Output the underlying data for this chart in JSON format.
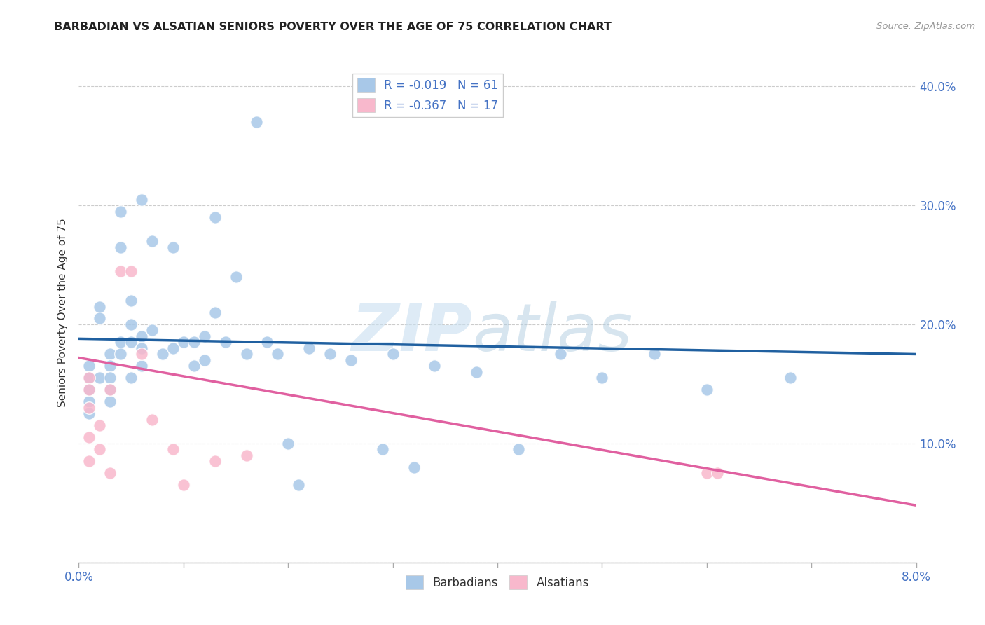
{
  "title": "BARBADIAN VS ALSATIAN SENIORS POVERTY OVER THE AGE OF 75 CORRELATION CHART",
  "source": "Source: ZipAtlas.com",
  "ylabel": "Seniors Poverty Over the Age of 75",
  "xlim": [
    0.0,
    0.08
  ],
  "ylim": [
    0.0,
    0.42
  ],
  "xticks": [
    0.0,
    0.01,
    0.02,
    0.03,
    0.04,
    0.05,
    0.06,
    0.07,
    0.08
  ],
  "xtick_labels": [
    "0.0%",
    "",
    "",
    "",
    "",
    "",
    "",
    "",
    "8.0%"
  ],
  "ytick_labels_right": [
    "",
    "10.0%",
    "20.0%",
    "30.0%",
    "40.0%"
  ],
  "yticks_right": [
    0.0,
    0.1,
    0.2,
    0.3,
    0.4
  ],
  "watermark_zip": "ZIP",
  "watermark_atlas": "atlas",
  "barbadian_color": "#a8c8e8",
  "alsatian_color": "#f8b8cc",
  "line_barbadian_color": "#2060a0",
  "line_alsatian_color": "#e060a0",
  "barbadian_x": [
    0.001,
    0.001,
    0.001,
    0.001,
    0.001,
    0.001,
    0.001,
    0.002,
    0.002,
    0.002,
    0.003,
    0.003,
    0.003,
    0.003,
    0.003,
    0.004,
    0.004,
    0.004,
    0.004,
    0.005,
    0.005,
    0.005,
    0.005,
    0.006,
    0.006,
    0.006,
    0.006,
    0.007,
    0.007,
    0.008,
    0.009,
    0.009,
    0.01,
    0.011,
    0.011,
    0.012,
    0.012,
    0.013,
    0.013,
    0.014,
    0.015,
    0.016,
    0.017,
    0.018,
    0.019,
    0.02,
    0.021,
    0.022,
    0.024,
    0.026,
    0.029,
    0.03,
    0.032,
    0.034,
    0.038,
    0.042,
    0.046,
    0.05,
    0.055,
    0.06,
    0.068
  ],
  "barbadian_y": [
    0.165,
    0.155,
    0.155,
    0.145,
    0.145,
    0.135,
    0.125,
    0.215,
    0.205,
    0.155,
    0.175,
    0.165,
    0.155,
    0.145,
    0.135,
    0.295,
    0.265,
    0.185,
    0.175,
    0.22,
    0.2,
    0.185,
    0.155,
    0.305,
    0.19,
    0.18,
    0.165,
    0.27,
    0.195,
    0.175,
    0.265,
    0.18,
    0.185,
    0.185,
    0.165,
    0.19,
    0.17,
    0.29,
    0.21,
    0.185,
    0.24,
    0.175,
    0.37,
    0.185,
    0.175,
    0.1,
    0.065,
    0.18,
    0.175,
    0.17,
    0.095,
    0.175,
    0.08,
    0.165,
    0.16,
    0.095,
    0.175,
    0.155,
    0.175,
    0.145,
    0.155
  ],
  "alsatian_x": [
    0.001,
    0.001,
    0.001,
    0.001,
    0.001,
    0.002,
    0.002,
    0.003,
    0.003,
    0.004,
    0.005,
    0.006,
    0.007,
    0.009,
    0.01,
    0.013,
    0.016,
    0.06,
    0.061
  ],
  "alsatian_y": [
    0.155,
    0.145,
    0.13,
    0.105,
    0.085,
    0.115,
    0.095,
    0.145,
    0.075,
    0.245,
    0.245,
    0.175,
    0.12,
    0.095,
    0.065,
    0.085,
    0.09,
    0.075,
    0.075
  ],
  "barb_trend_x": [
    0.0,
    0.08
  ],
  "barb_trend_y": [
    0.188,
    0.175
  ],
  "alsat_trend_x": [
    0.0,
    0.08
  ],
  "alsat_trend_y": [
    0.172,
    0.048
  ]
}
